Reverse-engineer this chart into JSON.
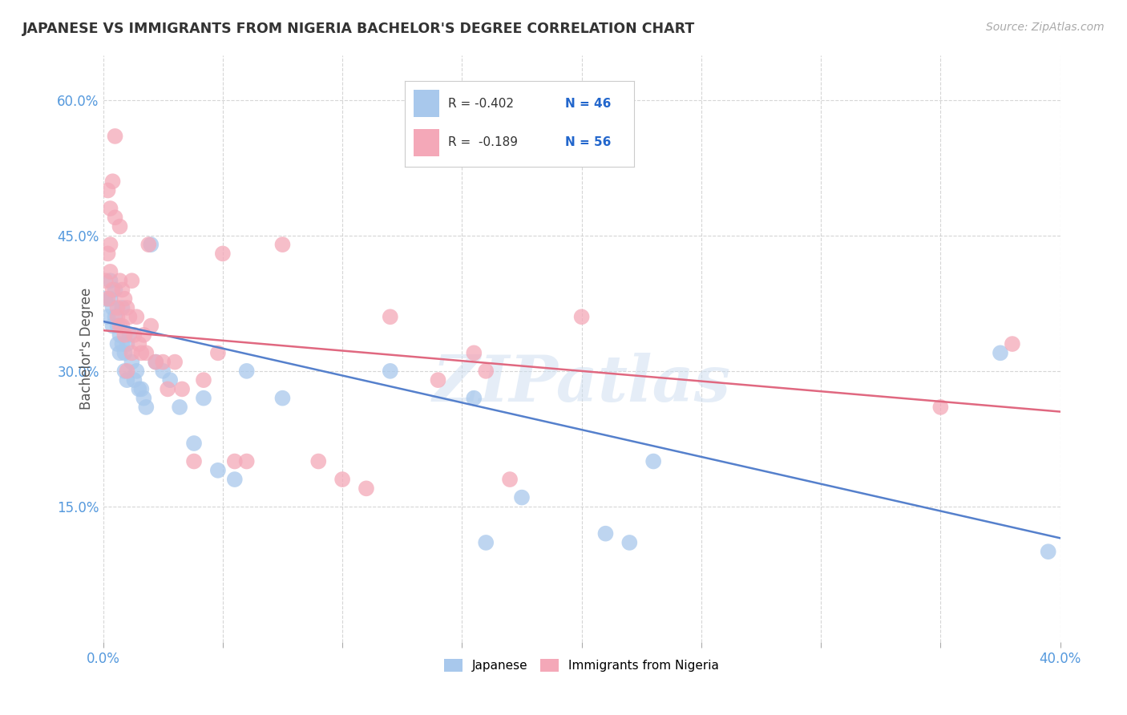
{
  "title": "JAPANESE VS IMMIGRANTS FROM NIGERIA BACHELOR'S DEGREE CORRELATION CHART",
  "source": "Source: ZipAtlas.com",
  "ylabel": "Bachelor's Degree",
  "xlim": [
    0.0,
    0.4
  ],
  "ylim": [
    0.0,
    0.65
  ],
  "xticks_labeled": [
    0.0,
    0.4
  ],
  "xticks_minor": [
    0.05,
    0.1,
    0.15,
    0.2,
    0.25,
    0.3,
    0.35
  ],
  "yticks_right": [
    0.15,
    0.3,
    0.45,
    0.6
  ],
  "blue_R": -0.402,
  "blue_N": 46,
  "pink_R": -0.189,
  "pink_N": 56,
  "blue_color": "#A8C8EC",
  "pink_color": "#F4A8B8",
  "blue_line_color": "#5580CC",
  "pink_line_color": "#E06880",
  "legend_label_blue": "Japanese",
  "legend_label_pink": "Immigrants from Nigeria",
  "watermark": "ZIPatlas",
  "background_color": "#ffffff",
  "blue_line_x0": 0.0,
  "blue_line_x1": 0.4,
  "blue_line_y0": 0.355,
  "blue_line_y1": 0.115,
  "pink_line_x0": 0.0,
  "pink_line_x1": 0.4,
  "pink_line_y0": 0.345,
  "pink_line_y1": 0.255,
  "blue_scatter_x": [
    0.001,
    0.002,
    0.003,
    0.003,
    0.004,
    0.004,
    0.005,
    0.005,
    0.006,
    0.006,
    0.007,
    0.007,
    0.008,
    0.008,
    0.009,
    0.009,
    0.01,
    0.01,
    0.011,
    0.012,
    0.013,
    0.014,
    0.015,
    0.016,
    0.017,
    0.018,
    0.02,
    0.022,
    0.025,
    0.028,
    0.032,
    0.038,
    0.042,
    0.048,
    0.055,
    0.06,
    0.075,
    0.12,
    0.155,
    0.16,
    0.175,
    0.21,
    0.22,
    0.23,
    0.375,
    0.395
  ],
  "blue_scatter_y": [
    0.38,
    0.36,
    0.4,
    0.38,
    0.37,
    0.35,
    0.39,
    0.36,
    0.35,
    0.33,
    0.34,
    0.32,
    0.37,
    0.33,
    0.32,
    0.3,
    0.33,
    0.29,
    0.34,
    0.31,
    0.29,
    0.3,
    0.28,
    0.28,
    0.27,
    0.26,
    0.44,
    0.31,
    0.3,
    0.29,
    0.26,
    0.22,
    0.27,
    0.19,
    0.18,
    0.3,
    0.27,
    0.3,
    0.27,
    0.11,
    0.16,
    0.12,
    0.11,
    0.2,
    0.32,
    0.1
  ],
  "pink_scatter_x": [
    0.001,
    0.002,
    0.002,
    0.003,
    0.003,
    0.004,
    0.004,
    0.005,
    0.005,
    0.006,
    0.006,
    0.007,
    0.007,
    0.008,
    0.008,
    0.009,
    0.009,
    0.01,
    0.011,
    0.012,
    0.013,
    0.014,
    0.015,
    0.016,
    0.017,
    0.018,
    0.019,
    0.02,
    0.022,
    0.025,
    0.027,
    0.03,
    0.033,
    0.038,
    0.042,
    0.048,
    0.055,
    0.06,
    0.075,
    0.09,
    0.1,
    0.11,
    0.12,
    0.14,
    0.155,
    0.16,
    0.17,
    0.2,
    0.35,
    0.38,
    0.002,
    0.003,
    0.007,
    0.01,
    0.012,
    0.05
  ],
  "pink_scatter_y": [
    0.4,
    0.43,
    0.38,
    0.44,
    0.41,
    0.51,
    0.39,
    0.56,
    0.47,
    0.37,
    0.36,
    0.4,
    0.35,
    0.39,
    0.35,
    0.38,
    0.34,
    0.37,
    0.36,
    0.4,
    0.34,
    0.36,
    0.33,
    0.32,
    0.34,
    0.32,
    0.44,
    0.35,
    0.31,
    0.31,
    0.28,
    0.31,
    0.28,
    0.2,
    0.29,
    0.32,
    0.2,
    0.2,
    0.44,
    0.2,
    0.18,
    0.17,
    0.36,
    0.29,
    0.32,
    0.3,
    0.18,
    0.36,
    0.26,
    0.33,
    0.5,
    0.48,
    0.46,
    0.3,
    0.32,
    0.43
  ]
}
